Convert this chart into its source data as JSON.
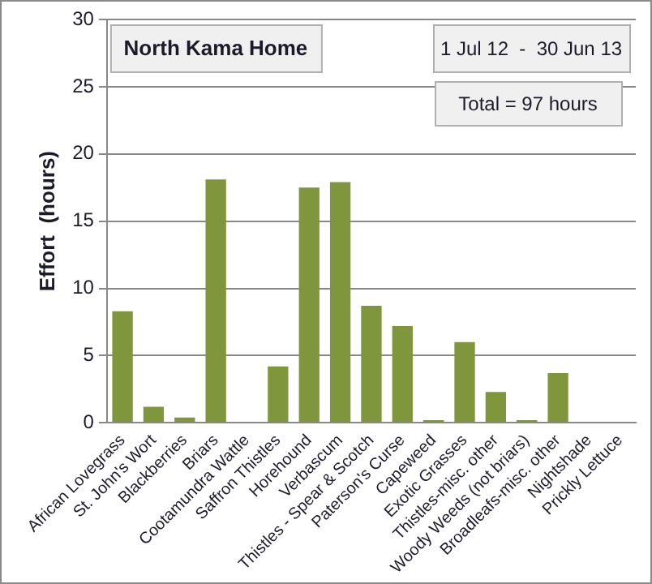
{
  "chart_data": {
    "type": "bar",
    "title": "North Kama Home",
    "subtitle": "1 Jul 12  -  30 Jun 13",
    "annotations": [
      "Total = 97 hours"
    ],
    "ylabel": "Effort  (hours)",
    "categories": [
      "African Lovegrass",
      "St. John's Wort",
      "Blackberries",
      "Briars",
      "Cootamundra Wattle",
      "Saffron Thistles",
      "Horehound",
      "Verbascum",
      "Thistles - Spear & Scotch",
      "Paterson's Curse",
      "Capeweed",
      "Exotic Grasses",
      "Thistles-misc. other",
      "Woody Weeds (not briars)",
      "Broadleafs-misc. other",
      "Nightshade",
      "Prickly Lettuce"
    ],
    "values": [
      8.3,
      1.2,
      0.4,
      18.1,
      0,
      4.2,
      17.5,
      17.9,
      8.7,
      7.2,
      0.2,
      6.0,
      2.3,
      0.2,
      3.7,
      0,
      0
    ],
    "color": "#7f963c",
    "ylim": [
      0,
      30
    ],
    "yticks": [
      0,
      5,
      10,
      15,
      20,
      25,
      30
    ],
    "grid": "y",
    "legend": false
  }
}
